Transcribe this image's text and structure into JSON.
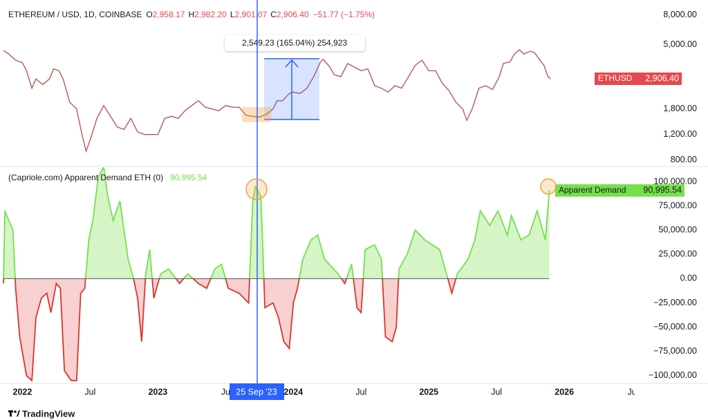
{
  "chart_data": [
    {
      "type": "line",
      "title": "ETHEREUM / USD, 1D, COINBASE",
      "ohlc": [
        {
          "label": "O",
          "value": "2,958.17"
        },
        {
          "label": "H",
          "value": "2,982.20"
        },
        {
          "label": "L",
          "value": "2,901.07"
        },
        {
          "label": "C",
          "value": "2,906.40"
        }
      ],
      "change": "−51.77 (−1.75%)",
      "log_scale": true,
      "xlim": [
        2021.86,
        2026.53
      ],
      "ylim": [
        730,
        9600
      ],
      "yticks": [
        {
          "value": 8000,
          "label": "8,000.00"
        },
        {
          "value": 5000,
          "label": "5,000.00"
        },
        {
          "value": 1800,
          "label": "1,800.00"
        },
        {
          "value": 1200,
          "label": "1,200.00"
        },
        {
          "value": 800,
          "label": "800.00"
        }
      ],
      "x": [
        2021.86,
        2021.9,
        2021.95,
        2022.0,
        2022.03,
        2022.07,
        2022.1,
        2022.15,
        2022.2,
        2022.23,
        2022.27,
        2022.3,
        2022.35,
        2022.4,
        2022.44,
        2022.47,
        2022.5,
        2022.55,
        2022.6,
        2022.65,
        2022.7,
        2022.75,
        2022.8,
        2022.85,
        2022.9,
        2022.95,
        2023.0,
        2023.05,
        2023.1,
        2023.15,
        2023.2,
        2023.25,
        2023.3,
        2023.35,
        2023.4,
        2023.45,
        2023.5,
        2023.55,
        2023.6,
        2023.65,
        2023.7,
        2023.75,
        2023.8,
        2023.85,
        2023.88,
        2023.92,
        2023.97,
        2024.0,
        2024.05,
        2024.1,
        2024.15,
        2024.2,
        2024.22,
        2024.27,
        2024.3,
        2024.35,
        2024.4,
        2024.45,
        2024.5,
        2024.55,
        2024.6,
        2024.65,
        2024.7,
        2024.75,
        2024.8,
        2024.85,
        2024.9,
        2024.95,
        2025.0,
        2025.05,
        2025.1,
        2025.15,
        2025.2,
        2025.25,
        2025.28,
        2025.32,
        2025.37,
        2025.42,
        2025.47,
        2025.52,
        2025.55,
        2025.6,
        2025.63,
        2025.67,
        2025.7,
        2025.75,
        2025.78,
        2025.82,
        2025.85,
        2025.88,
        2025.9
      ],
      "series": [
        {
          "name": "ETHUSD",
          "color": "#b85a58",
          "label_color": "#e5484d",
          "last_value_label": "2,906.40",
          "values": [
            4550,
            4300,
            3900,
            3750,
            3300,
            2500,
            2900,
            2650,
            2900,
            3400,
            3300,
            2900,
            2000,
            1800,
            1200,
            920,
            1100,
            1550,
            1900,
            1600,
            1350,
            1300,
            1550,
            1250,
            1200,
            1200,
            1200,
            1550,
            1600,
            1550,
            1750,
            1900,
            2050,
            1850,
            1800,
            1750,
            1900,
            1850,
            1850,
            1630,
            1600,
            1580,
            1650,
            1800,
            2050,
            2050,
            2300,
            2350,
            2300,
            2500,
            3000,
            3800,
            3950,
            3500,
            3100,
            3000,
            3700,
            3500,
            3300,
            3400,
            2600,
            2500,
            2350,
            2600,
            2500,
            3000,
            3600,
            3900,
            3300,
            3300,
            2700,
            2400,
            2000,
            1800,
            1500,
            1800,
            2500,
            2600,
            2450,
            3000,
            3700,
            3800,
            4300,
            4600,
            4300,
            4500,
            4400,
            3900,
            3600,
            3000,
            2906.4
          ]
        }
      ],
      "measure_label": "2,549.23 (165.04%) 254,923"
    },
    {
      "type": "area",
      "title": "(Capriole.com) Apparent Demand ETH (0)",
      "xlim": [
        2021.86,
        2026.53
      ],
      "xticks": [
        {
          "value": 2022,
          "label": "2022"
        },
        {
          "value": 2022.5,
          "label": "Jul"
        },
        {
          "value": 2023,
          "label": "2023"
        },
        {
          "value": 2023.5,
          "label": "Ju"
        },
        {
          "value": 2024,
          "label": "2024"
        },
        {
          "value": 2024.5,
          "label": "Jul"
        },
        {
          "value": 2025,
          "label": "2025"
        },
        {
          "value": 2025.5,
          "label": "Jul"
        },
        {
          "value": 2026,
          "label": "2026"
        },
        {
          "value": 2026.5,
          "label": "Ju"
        }
      ],
      "ylim": [
        -108000,
        115000
      ],
      "yticks": [
        {
          "value": 100000,
          "label": "100,000.00"
        },
        {
          "value": 75000,
          "label": "75,000.00"
        },
        {
          "value": 50000,
          "label": "50,000.00"
        },
        {
          "value": 25000,
          "label": "25,000.00"
        },
        {
          "value": 0,
          "label": "0.00"
        },
        {
          "value": -25000,
          "label": "−25,000.00"
        },
        {
          "value": -50000,
          "label": "−50,000.00"
        },
        {
          "value": -75000,
          "label": "−75,000.00"
        },
        {
          "value": -100000,
          "label": "−100,000.00"
        }
      ],
      "x": [
        2021.86,
        2021.87,
        2021.9,
        2021.93,
        2021.95,
        2021.98,
        2022.03,
        2022.07,
        2022.1,
        2022.14,
        2022.18,
        2022.21,
        2022.25,
        2022.28,
        2022.31,
        2022.36,
        2022.4,
        2022.43,
        2022.46,
        2022.49,
        2022.52,
        2022.56,
        2022.6,
        2022.63,
        2022.67,
        2022.72,
        2022.78,
        2022.82,
        2022.85,
        2022.88,
        2022.91,
        2022.94,
        2022.97,
        2023.02,
        2023.08,
        2023.16,
        2023.22,
        2023.3,
        2023.36,
        2023.42,
        2023.47,
        2023.52,
        2023.6,
        2023.67,
        2023.7,
        2023.72,
        2023.76,
        2023.77,
        2023.79,
        2023.85,
        2023.89,
        2023.93,
        2023.97,
        2024.0,
        2024.03,
        2024.07,
        2024.13,
        2024.18,
        2024.23,
        2024.33,
        2024.38,
        2024.43,
        2024.47,
        2024.5,
        2024.53,
        2024.6,
        2024.65,
        2024.68,
        2024.73,
        2024.76,
        2024.78,
        2024.84,
        2024.9,
        2024.97,
        2025.08,
        2025.14,
        2025.17,
        2025.21,
        2025.29,
        2025.34,
        2025.38,
        2025.45,
        2025.51,
        2025.58,
        2025.61,
        2025.68,
        2025.74,
        2025.8,
        2025.86,
        2025.89
      ],
      "series": [
        {
          "name": "Apparent Demand",
          "color": "#74e04a",
          "fill": "#d5f5c6",
          "negative_color": "#d9352a",
          "negative_fill": "#f8d0d0",
          "last_value_label": "90,995.54",
          "values": [
            -5000,
            70000,
            60000,
            50000,
            -10000,
            -60000,
            -100000,
            -105000,
            -40000,
            -20000,
            -15000,
            -35000,
            -5000,
            -10000,
            -95000,
            -105000,
            -105000,
            -15000,
            -10000,
            40000,
            60000,
            105000,
            115000,
            85000,
            60000,
            80000,
            20000,
            0,
            -20000,
            -65000,
            5000,
            30000,
            -20000,
            5000,
            10000,
            -5000,
            5000,
            -5000,
            -10000,
            10000,
            15000,
            -10000,
            -15000,
            -25000,
            80000,
            95000,
            85000,
            50000,
            -30000,
            -25000,
            -40000,
            -65000,
            -72000,
            -25000,
            -10000,
            20000,
            40000,
            45000,
            20000,
            5000,
            -5000,
            15000,
            -30000,
            -35000,
            30000,
            35000,
            20000,
            -60000,
            -65000,
            -50000,
            10000,
            25000,
            50000,
            40000,
            30000,
            0,
            -15000,
            5000,
            20000,
            40000,
            70000,
            55000,
            70000,
            45000,
            65000,
            40000,
            45000,
            70000,
            40000,
            90995.54
          ]
        }
      ],
      "crosshair_label": "25 Sep '23"
    }
  ],
  "brand": "TradingView"
}
